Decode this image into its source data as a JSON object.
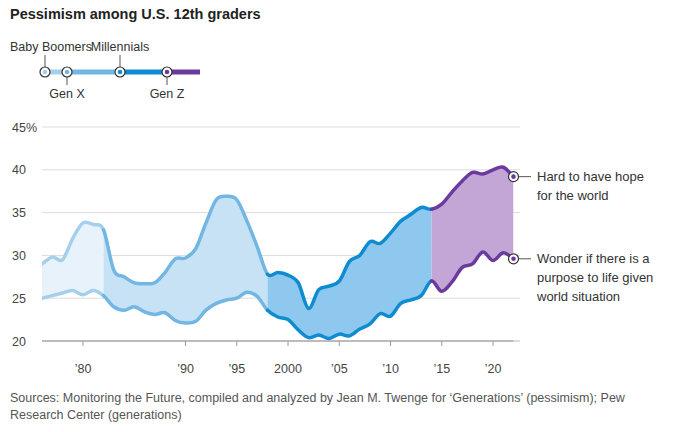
{
  "chart_data": {
    "type": "line",
    "title": "Pessimism among U.S. 12th graders",
    "x": [
      1976,
      1977,
      1978,
      1979,
      1980,
      1981,
      1982,
      1983,
      1984,
      1985,
      1986,
      1987,
      1988,
      1989,
      1990,
      1991,
      1992,
      1993,
      1994,
      1995,
      1996,
      1997,
      1998,
      1999,
      2000,
      2001,
      2002,
      2003,
      2004,
      2005,
      2006,
      2007,
      2008,
      2009,
      2010,
      2011,
      2012,
      2013,
      2014,
      2015,
      2016,
      2017,
      2018,
      2019,
      2020,
      2021,
      2022
    ],
    "series": [
      {
        "name": "Hard to have hope for the world",
        "values": [
          29.0,
          29.8,
          29.5,
          32.0,
          33.8,
          33.6,
          33.0,
          28.3,
          27.5,
          26.8,
          26.7,
          26.8,
          28.0,
          29.6,
          29.7,
          30.8,
          33.8,
          36.5,
          36.9,
          36.5,
          34.0,
          31.0,
          27.8,
          28.0,
          27.7,
          26.8,
          23.8,
          26.0,
          26.4,
          27.0,
          29.3,
          30.0,
          31.6,
          31.4,
          32.6,
          34.0,
          34.8,
          35.6,
          35.4,
          36.0,
          37.4,
          38.7,
          39.7,
          39.5,
          40.0,
          40.3,
          39.2
        ]
      },
      {
        "name": "Wonder if there is a purpose to life given world situation",
        "values": [
          25.0,
          25.3,
          25.6,
          25.9,
          25.4,
          25.9,
          25.3,
          24.0,
          23.6,
          24.0,
          23.4,
          23.1,
          23.3,
          22.4,
          22.1,
          22.3,
          23.6,
          24.4,
          24.8,
          25.0,
          25.7,
          25.2,
          23.6,
          22.8,
          22.5,
          21.3,
          20.4,
          20.7,
          20.3,
          20.8,
          20.6,
          21.4,
          22.0,
          23.2,
          22.9,
          24.4,
          24.8,
          25.3,
          27.0,
          25.8,
          26.9,
          28.6,
          29.0,
          30.4,
          29.4,
          30.3,
          29.6
        ]
      }
    ],
    "generations": [
      {
        "name": "Baby Boomers",
        "start": 1976,
        "end": 1982,
        "color": "#a6cfee",
        "area_color": "#e8f2fa"
      },
      {
        "name": "Gen X",
        "start": 1982,
        "end": 1998,
        "color": "#72b6e4",
        "area_color": "#c8e2f5"
      },
      {
        "name": "Millennials",
        "start": 1998,
        "end": 2014,
        "color": "#0f8bd1",
        "area_color": "#8fc8ee"
      },
      {
        "name": "Gen Z",
        "start": 2014,
        "end": 2022,
        "color": "#6b3a9e",
        "area_color": "#c3a5d6"
      }
    ],
    "xlim": [
      1976,
      2022
    ],
    "xticks": [
      {
        "value": 1980,
        "label": "’80"
      },
      {
        "value": 1990,
        "label": "’90"
      },
      {
        "value": 1995,
        "label": "’95"
      },
      2000,
      {
        "value": 2005,
        "label": "’05"
      },
      {
        "value": 2010,
        "label": "’10"
      },
      {
        "value": 2015,
        "label": "’15"
      },
      {
        "value": 2020,
        "label": "’20"
      }
    ],
    "ylim": [
      20,
      45
    ],
    "yticks": [
      20,
      25,
      30,
      35,
      40,
      {
        "value": 45,
        "label": "45%"
      }
    ],
    "grid": true,
    "source": "Sources: Monitoring the Future, compiled and analyzed by Jean M. Twenge for ‘Generations’ (pessimism); Pew Research Center (generations)"
  }
}
